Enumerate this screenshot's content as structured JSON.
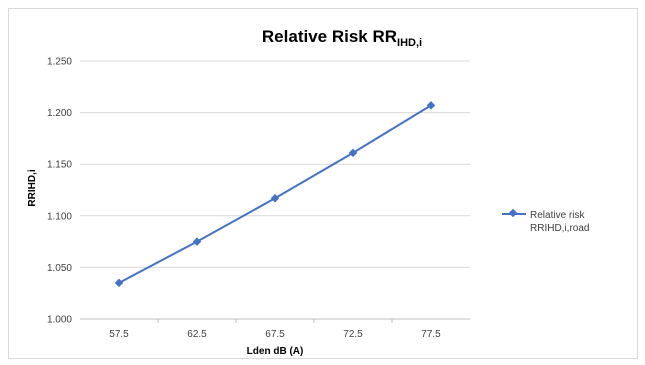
{
  "chart_data": {
    "type": "line",
    "title_main": "Relative Risk RR",
    "title_sub": "IHD,i",
    "xlabel": "Lden dB (A)",
    "ylabel": "RRIHD,i",
    "categories": [
      "57.5",
      "62.5",
      "67.5",
      "72.5",
      "77.5"
    ],
    "y_ticks": [
      "1.000",
      "1.050",
      "1.100",
      "1.150",
      "1.200",
      "1.250"
    ],
    "ylim": [
      1.0,
      1.25
    ],
    "grid": "horizontal",
    "legend_placement": "right",
    "series": [
      {
        "name": "Relative risk RRIHD,i,road",
        "legend_line1": "Relative risk",
        "legend_line2": "RRIHD,i,road",
        "color": "#4472c4",
        "values": [
          1.035,
          1.075,
          1.117,
          1.161,
          1.207
        ]
      }
    ]
  }
}
